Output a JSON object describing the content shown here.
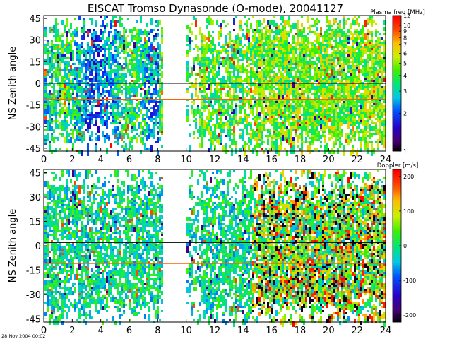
{
  "title": "EISCAT Tromso Dynasonde (O-mode),  20041127",
  "timestamp": "28 Nov 2004 00:02",
  "chart_data": [
    {
      "type": "heatmap",
      "ylabel": "NS Zenith angle",
      "xlim": [
        0,
        24
      ],
      "ylim": [
        -47,
        47
      ],
      "x_ticks": [
        "0",
        "2",
        "4",
        "6",
        "8",
        "10",
        "12",
        "14",
        "16",
        "18",
        "20",
        "22",
        "24"
      ],
      "y_ticks": [
        "-45",
        "-30",
        "-15",
        "0",
        "15",
        "30",
        "45"
      ],
      "reference_lines": [
        {
          "y": 0,
          "color": "#000000"
        },
        {
          "y": -11,
          "color": "#ff6000"
        }
      ],
      "colorbar": {
        "label": "Plasma freq [MHz]",
        "scale": "log",
        "min": 1,
        "max": 12,
        "tick_labels": [
          "12",
          "10",
          "9",
          "8",
          "7",
          "6",
          "5",
          "4",
          "3",
          "2",
          "1"
        ]
      }
    },
    {
      "type": "heatmap",
      "ylabel": "NS Zenith angle",
      "xlim": [
        0,
        24
      ],
      "ylim": [
        -47,
        47
      ],
      "x_ticks": [
        "0",
        "2",
        "4",
        "6",
        "8",
        "10",
        "12",
        "14",
        "16",
        "18",
        "20",
        "22",
        "24"
      ],
      "y_ticks": [
        "-45",
        "-30",
        "-15",
        "0",
        "15",
        "30",
        "45"
      ],
      "reference_lines": [
        {
          "y": 2,
          "color": "#000000"
        },
        {
          "y": -11,
          "color": "#ff6000"
        }
      ],
      "colorbar": {
        "label": "Doppler [m/s]",
        "scale": "linear",
        "min": -220,
        "max": 220,
        "tick_labels": [
          "200",
          "100",
          "0",
          "-100",
          "-200"
        ]
      }
    }
  ]
}
